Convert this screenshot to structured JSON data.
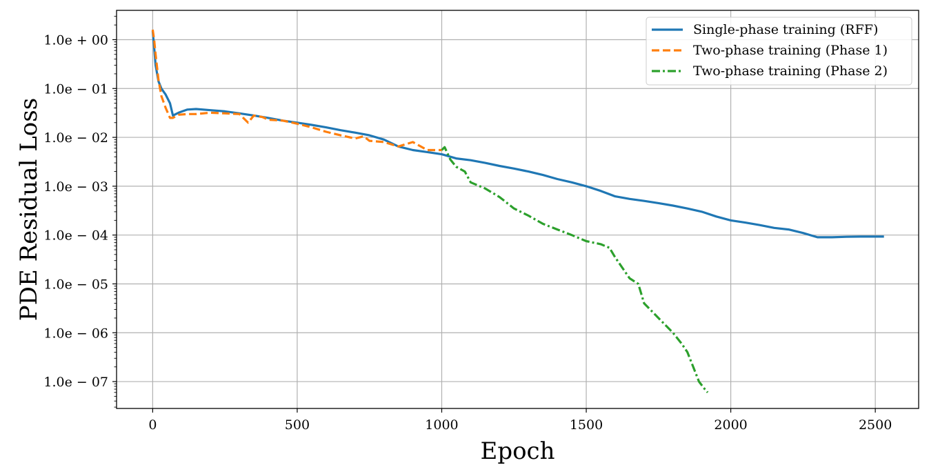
{
  "chart_data": {
    "type": "line",
    "title": "",
    "xlabel": "Epoch",
    "ylabel": "PDE Residual Loss",
    "xlim": [
      -125,
      2650
    ],
    "ylog10lim": [
      -7.55,
      0.6
    ],
    "yscale": "log",
    "grid": true,
    "legend_position": "top-right",
    "x_ticks": [
      0,
      500,
      1000,
      1500,
      2000,
      2500
    ],
    "x_tick_labels": [
      "0",
      "500",
      "1000",
      "1500",
      "2000",
      "2500"
    ],
    "y_ticks_log10": [
      0,
      -1,
      -2,
      -3,
      -4,
      -5,
      -6,
      -7
    ],
    "y_tick_labels": [
      "1.0e + 00",
      "1.0e − 01",
      "1.0e − 02",
      "1.0e − 03",
      "1.0e − 04",
      "1.0e − 05",
      "1.0e − 06",
      "1.0e − 07"
    ],
    "series": [
      {
        "name": "Single-phase training (RFF)",
        "color": "#1f77b4",
        "style": "solid",
        "x": [
          0,
          5,
          10,
          20,
          30,
          45,
          60,
          70,
          90,
          120,
          150,
          200,
          250,
          300,
          350,
          400,
          450,
          500,
          550,
          600,
          650,
          700,
          750,
          800,
          850,
          900,
          950,
          1000,
          1050,
          1100,
          1150,
          1200,
          1250,
          1300,
          1350,
          1400,
          1450,
          1500,
          1550,
          1600,
          1650,
          1700,
          1750,
          1800,
          1850,
          1900,
          1950,
          2000,
          2050,
          2100,
          2150,
          2200,
          2250,
          2300,
          2350,
          2400,
          2450,
          2530
        ],
        "y": [
          1.5,
          0.7,
          0.3,
          0.14,
          0.1,
          0.075,
          0.05,
          0.028,
          0.032,
          0.037,
          0.038,
          0.036,
          0.034,
          0.031,
          0.028,
          0.025,
          0.022,
          0.02,
          0.018,
          0.016,
          0.014,
          0.0125,
          0.011,
          0.009,
          0.0065,
          0.0055,
          0.005,
          0.0045,
          0.0037,
          0.0034,
          0.003,
          0.0026,
          0.0023,
          0.002,
          0.0017,
          0.0014,
          0.0012,
          0.001,
          0.0008,
          0.00062,
          0.00055,
          0.0005,
          0.00045,
          0.0004,
          0.00035,
          0.0003,
          0.00024,
          0.0002,
          0.00018,
          0.00016,
          0.00014,
          0.00013,
          0.00011,
          9e-05,
          9e-05,
          9.2e-05,
          9.3e-05,
          9.3e-05
        ]
      },
      {
        "name": "Two-phase training (Phase 1)",
        "color": "#ff7f0e",
        "style": "dashed",
        "x": [
          0,
          5,
          10,
          20,
          30,
          45,
          60,
          70,
          90,
          120,
          150,
          200,
          250,
          300,
          330,
          350,
          380,
          400,
          450,
          500,
          550,
          600,
          650,
          700,
          730,
          750,
          800,
          850,
          900,
          950,
          1000
        ],
        "y": [
          1.6,
          1.0,
          0.5,
          0.15,
          0.07,
          0.04,
          0.025,
          0.025,
          0.029,
          0.03,
          0.03,
          0.032,
          0.031,
          0.03,
          0.02,
          0.028,
          0.026,
          0.023,
          0.022,
          0.019,
          0.016,
          0.013,
          0.011,
          0.0095,
          0.0105,
          0.0085,
          0.008,
          0.0065,
          0.008,
          0.0055,
          0.0055
        ]
      },
      {
        "name": "Two-phase training (Phase 2)",
        "color": "#2ca02c",
        "style": "dashdot",
        "x": [
          1000,
          1010,
          1030,
          1050,
          1080,
          1100,
          1150,
          1200,
          1250,
          1300,
          1350,
          1400,
          1450,
          1500,
          1550,
          1580,
          1600,
          1650,
          1680,
          1700,
          1750,
          1800,
          1830,
          1850,
          1870,
          1890,
          1910,
          1920
        ],
        "y": [
          0.0055,
          0.0063,
          0.0035,
          0.0025,
          0.002,
          0.0012,
          0.0009,
          0.0006,
          0.00035,
          0.00025,
          0.00017,
          0.00013,
          0.0001,
          7.5e-05,
          6.5e-05,
          5.5e-05,
          3.5e-05,
          1.3e-05,
          1e-05,
          4e-06,
          2e-06,
          1e-06,
          6e-07,
          4e-07,
          2e-07,
          1e-07,
          7e-08,
          6e-08
        ]
      }
    ]
  }
}
